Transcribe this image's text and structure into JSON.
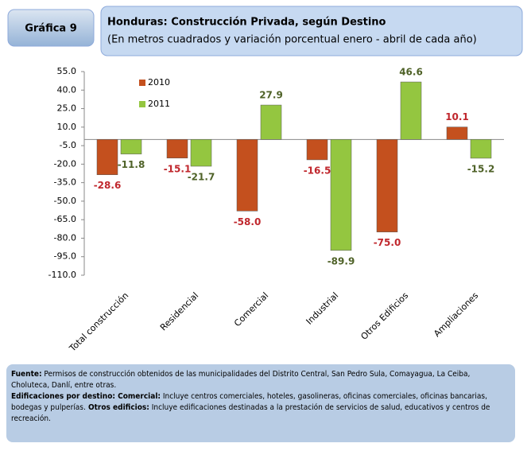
{
  "figure_label": "Gráfica 9",
  "chart_data": {
    "type": "bar",
    "title": "Honduras:  Construcción Privada, según Destino",
    "subtitle": "(En metros cuadrados y variación porcentual enero - abril de cada año)",
    "categories": [
      "Total construcción",
      "Residencial",
      "Comercial",
      "Industrial",
      "Otros Edificios",
      "Ampliaciones"
    ],
    "series": [
      {
        "name": "2010",
        "color": "#c4501e",
        "label_color": "#c0272d",
        "values": [
          -28.6,
          -15.1,
          -58.0,
          -16.5,
          -75.0,
          10.1
        ],
        "value_labels": [
          "-28.6",
          "-15.1",
          "-58.0",
          "-16.5",
          "-75.0",
          "10.1"
        ]
      },
      {
        "name": "2011",
        "color": "#94c640",
        "label_color": "#4f6228",
        "values": [
          -11.8,
          -21.7,
          27.9,
          -89.9,
          46.6,
          -15.2
        ],
        "value_labels": [
          "-11.8",
          "-21.7",
          "27.9",
          "-89.9",
          "46.6",
          "-15.2"
        ]
      }
    ],
    "ylim": [
      -110,
      55
    ],
    "yticks": [
      {
        "value": 55,
        "label": "55.0"
      },
      {
        "value": 40,
        "label": "40.0"
      },
      {
        "value": 25,
        "label": "25.0"
      },
      {
        "value": 10,
        "label": "10.0"
      },
      {
        "value": -5,
        "label": "-5.0"
      },
      {
        "value": -20,
        "label": "-20.0"
      },
      {
        "value": -35,
        "label": "-35.0"
      },
      {
        "value": -50,
        "label": "-50.0"
      },
      {
        "value": -65,
        "label": "-65.0"
      },
      {
        "value": -80,
        "label": "-80.0"
      },
      {
        "value": -95,
        "label": "-95.0"
      },
      {
        "value": -110,
        "label": "-110.0"
      }
    ],
    "grid": false,
    "legend": "upper left"
  },
  "footer": {
    "source_label": "Fuente:",
    "source_text": " Permisos de construcción obtenidos de las municipalidades del Distrito Central, San Pedro Sula, Comayagua, La Ceiba, Choluteca, Danlí, entre otras.",
    "destino_label": "Edificaciones por destino:",
    "comercial_label": " Comercial:",
    "comercial_text": " Incluye centros comerciales, hoteles, gasolineras, oficinas comerciales, oficinas bancarias, bodegas y pulperías.",
    "otros_label": " Otros edificios:",
    "otros_text": " Incluye edificaciones destinadas a la prestación de servicios de salud, educativos y centros de recreación."
  }
}
